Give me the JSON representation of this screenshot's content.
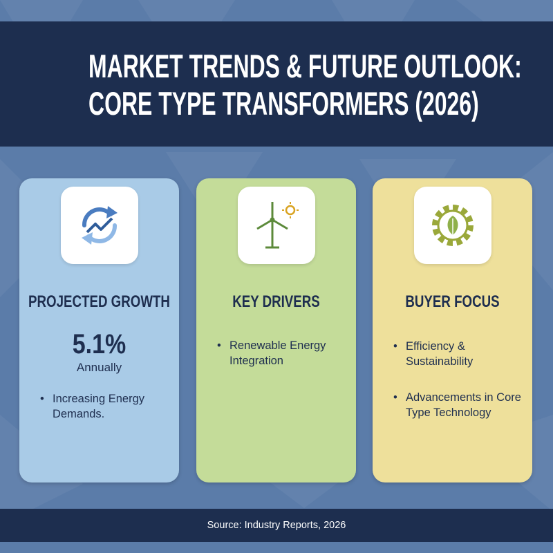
{
  "header": {
    "title": [
      "MARKET TRENDS & FUTURE OUTLOOK:",
      "CORE TYPE TRANSFORMERS (2026)"
    ]
  },
  "cards": [
    {
      "title": "PROJECTED GROWTH",
      "stat": "5.1%",
      "stat_label": "Annually",
      "bullets": [
        "Increasing Energy Demands."
      ]
    },
    {
      "title": "KEY DRIVERS",
      "bullets": [
        "Renewable Energy Integration"
      ]
    },
    {
      "title": "BUYER FOCUS",
      "bullets": [
        "Efficiency & Sustainability",
        "Advancements in Core Type Technology"
      ]
    }
  ],
  "footer": {
    "source": "Source: Industry Reports, 2026"
  }
}
